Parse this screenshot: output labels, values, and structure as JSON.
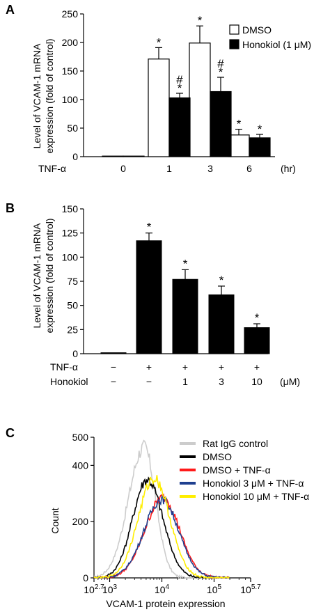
{
  "panels": {
    "A": {
      "label": "A"
    },
    "B": {
      "label": "B"
    },
    "C": {
      "label": "C"
    }
  },
  "chart_data": [
    {
      "panel": "A",
      "type": "bar",
      "ylabel_line1": "Level of VCAM-1 mRNA",
      "ylabel_line2": "expression (fold of control)",
      "ylim": [
        0,
        250
      ],
      "yticks": [
        "0",
        "50",
        "100",
        "150",
        "200",
        "250"
      ],
      "x_row_label": "TNF-α",
      "categories": [
        "0",
        "1",
        "3",
        "6"
      ],
      "x_unit": "(hr)",
      "series": [
        {
          "name": "DMSO",
          "color": "#ffffff",
          "values": [
            1,
            171,
            199,
            38
          ],
          "errors": [
            0,
            20,
            30,
            10
          ],
          "marks": [
            "",
            "*",
            "*",
            "*"
          ]
        },
        {
          "name": "Honokiol (1 μM)",
          "color": "#000000",
          "values": [
            1,
            103,
            114,
            33
          ],
          "errors": [
            0,
            8,
            25,
            6
          ],
          "marks": [
            "",
            "*",
            "*",
            "*"
          ],
          "hash": [
            "",
            "#",
            "#",
            ""
          ]
        }
      ],
      "legend_position": "top-right"
    },
    {
      "panel": "B",
      "type": "bar",
      "ylabel_line1": "Level of VCAM-1 mRNA",
      "ylabel_line2": "expression (fold of control)",
      "ylim": [
        0,
        150
      ],
      "yticks": [
        "0",
        "25",
        "50",
        "75",
        "100",
        "125",
        "150"
      ],
      "values": [
        1,
        117,
        77,
        61,
        27
      ],
      "errors": [
        0,
        8,
        10,
        9,
        4
      ],
      "marks": [
        "",
        "*",
        "*",
        "*",
        "*"
      ],
      "rows": [
        {
          "label": "TNF-α",
          "cells": [
            "−",
            "+",
            "+",
            "+",
            "+"
          ],
          "unit": ""
        },
        {
          "label": "Honokiol",
          "cells": [
            "−",
            "−",
            "1",
            "3",
            "10"
          ],
          "unit": "(μM)"
        }
      ]
    },
    {
      "panel": "C",
      "type": "line",
      "xlabel": "VCAM-1 protein expression",
      "ylabel": "Count",
      "xscale": "log",
      "xlim_exp": [
        2.7,
        5.7
      ],
      "xticks": [
        {
          "base": "10",
          "exp": "2.7",
          "value": 2.7
        },
        {
          "base": "10",
          "exp": "3",
          "value": 3
        },
        {
          "base": "10",
          "exp": "4",
          "value": 4
        },
        {
          "base": "10",
          "exp": "5",
          "value": 5
        },
        {
          "base": "10",
          "exp": "5.7",
          "value": 5.7
        }
      ],
      "ylim": [
        0,
        500
      ],
      "yticks": [
        "0",
        "200",
        "400",
        "500"
      ],
      "series": [
        {
          "name": "Rat IgG control",
          "color": "#cccccc",
          "peak_log": 3.66,
          "peak": 465,
          "width_l": 0.3,
          "width_r": 0.22
        },
        {
          "name": "DMSO",
          "color": "#000000",
          "peak_log": 3.72,
          "peak": 350,
          "width_l": 0.28,
          "width_r": 0.3
        },
        {
          "name": "DMSO + TNF-α",
          "color": "#ff1a1a",
          "peak_log": 4.02,
          "peak": 285,
          "width_l": 0.34,
          "width_r": 0.32
        },
        {
          "name": "Honokiol 3 μM + TNF-α",
          "color": "#1f3f8f",
          "peak_log": 4.0,
          "peak": 280,
          "width_l": 0.34,
          "width_r": 0.32
        },
        {
          "name": "Honokiol 10 μM + TNF-α",
          "color": "#ffee00",
          "peak_log": 3.85,
          "peak": 355,
          "width_l": 0.3,
          "width_r": 0.3
        }
      ]
    }
  ]
}
